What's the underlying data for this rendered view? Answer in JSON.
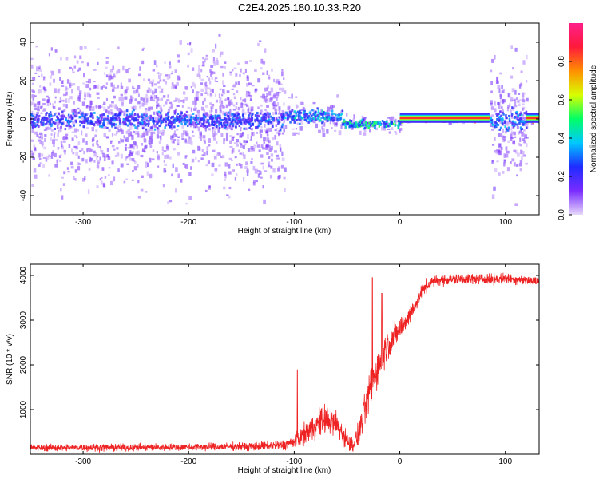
{
  "title": "C2E4.2025.180.10.33.R20",
  "chart_data": [
    {
      "type": "heatmap",
      "xlabel": "Height of straight line (km)",
      "ylabel": "Frequency (Hz)",
      "xlim": [
        -350,
        132
      ],
      "ylim": [
        -50,
        50
      ],
      "xticks": [
        -300,
        -200,
        -100,
        0,
        100
      ],
      "yticks": [
        -40,
        -20,
        0,
        20,
        40
      ],
      "grid": false,
      "colorbar": {
        "label": "Normalized spectral amplitude",
        "range": [
          0,
          1
        ],
        "ticks": [
          "0.0",
          "0.2",
          "0.4",
          "0.6",
          "0.8"
        ],
        "colors": [
          "#e6d8fb",
          "#7a2cff",
          "#1f2cff",
          "#00c8ff",
          "#00ff66",
          "#d8ff00",
          "#ff9000",
          "#ff1a3a",
          "#ff1f8a"
        ]
      },
      "segments": [
        {
          "x": [
            -350,
            -110
          ],
          "center_freq": 0,
          "core_halfwidth": 6,
          "spread": 50,
          "peak_amplitude": 0.35
        },
        {
          "x": [
            -110,
            -55
          ],
          "center_freq": 2,
          "core_halfwidth": 5,
          "spread": 15,
          "peak_amplitude": 0.45
        },
        {
          "x": [
            -55,
            0
          ],
          "center_freq": -2,
          "core_halfwidth": 3,
          "spread": 8,
          "peak_amplitude": 0.55
        },
        {
          "x": [
            0,
            85
          ],
          "center_freq": 0.5,
          "core_halfwidth": 2,
          "spread": 3,
          "peak_amplitude": 0.95
        },
        {
          "x": [
            85,
            120
          ],
          "center_freq": 0,
          "core_halfwidth": 8,
          "spread": 48,
          "peak_amplitude": 0.4
        },
        {
          "x": [
            120,
            132
          ],
          "center_freq": 0.5,
          "core_halfwidth": 2,
          "spread": 3,
          "peak_amplitude": 0.95
        }
      ]
    },
    {
      "type": "line",
      "xlabel": "Height of straight line (km)",
      "ylabel": "SNR (10 * v/v)",
      "xlim": [
        -350,
        132
      ],
      "ylim": [
        0,
        4250
      ],
      "xticks": [
        -300,
        -200,
        -100,
        0,
        100
      ],
      "yticks": [
        1000,
        2000,
        3000,
        4000
      ],
      "grid": false,
      "series": [
        {
          "color": "#ee2222",
          "x": [
            -350,
            -300,
            -250,
            -200,
            -150,
            -110,
            -100,
            -90,
            -80,
            -70,
            -60,
            -50,
            -45,
            -40,
            -35,
            -30,
            -25,
            -20,
            -15,
            -10,
            -5,
            0,
            5,
            10,
            15,
            20,
            25,
            30,
            40,
            60,
            80,
            100,
            120,
            132
          ],
          "y": [
            140,
            150,
            150,
            160,
            170,
            200,
            280,
            450,
            650,
            800,
            680,
            300,
            200,
            400,
            800,
            1300,
            1700,
            2000,
            2300,
            2500,
            2650,
            2800,
            2950,
            3150,
            3350,
            3600,
            3750,
            3850,
            3900,
            3920,
            3920,
            3930,
            3900,
            3850
          ],
          "noise": [
            110,
            120,
            120,
            120,
            130,
            170,
            200,
            350,
            450,
            500,
            450,
            300,
            250,
            350,
            500,
            650,
            700,
            650,
            550,
            500,
            420,
            380,
            350,
            300,
            280,
            250,
            220,
            200,
            180,
            170,
            170,
            170,
            170,
            170
          ],
          "spikes": [
            {
              "x": -97,
              "y": 1890
            },
            {
              "x": -26,
              "y": 3950
            },
            {
              "x": -17,
              "y": 3600
            }
          ]
        }
      ]
    }
  ]
}
